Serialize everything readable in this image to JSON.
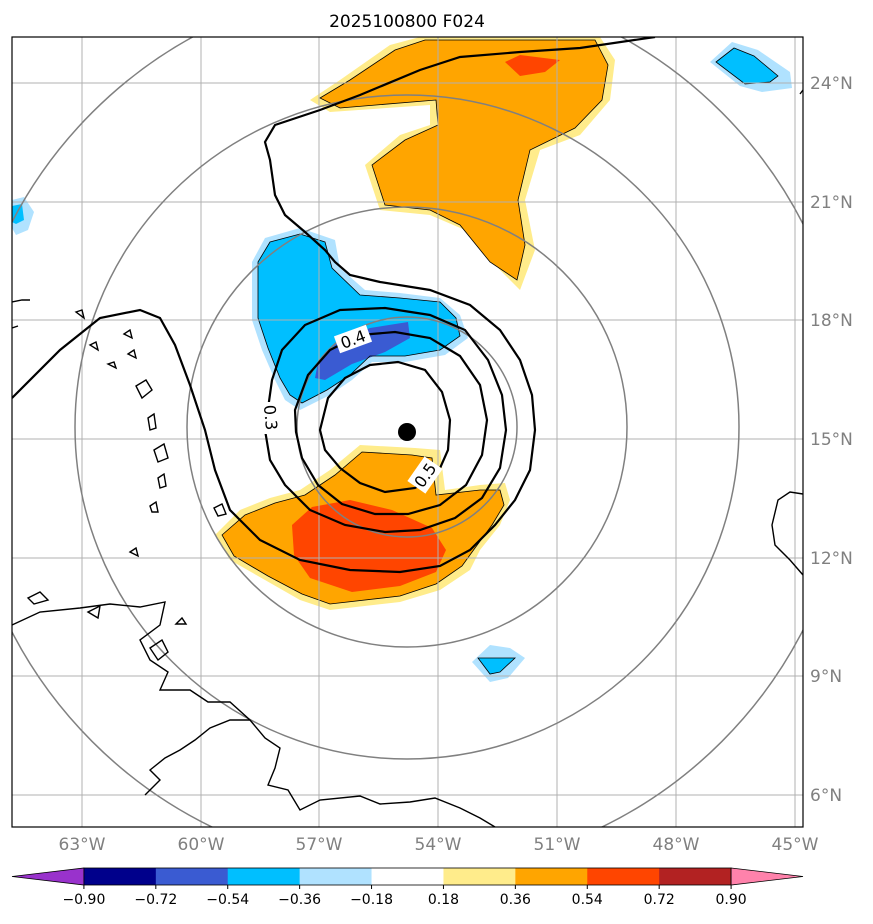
{
  "title": "2025100800 F024",
  "map": {
    "lon_labels": [
      "63°W",
      "60°W",
      "57°W",
      "54°W",
      "51°W",
      "48°W",
      "45°W"
    ],
    "lat_labels": [
      "24°N",
      "21°N",
      "18°N",
      "15°N",
      "12°N",
      "9°N",
      "6°N"
    ],
    "contour_labels": [
      "0.4",
      "0.3",
      "0.5"
    ],
    "storm_center": {
      "lon": -54.0,
      "lat": 15.2
    }
  },
  "colorbar": {
    "ticks": [
      "−0.90",
      "−0.72",
      "−0.54",
      "−0.36",
      "−0.18",
      "0.18",
      "0.36",
      "0.54",
      "0.72",
      "0.90"
    ],
    "colors": [
      "#9932cc",
      "#00008b",
      "#3a5bd2",
      "#00bfff",
      "#b0e2ff",
      "#ffffff",
      "#ffec8b",
      "#ffa500",
      "#ff4500",
      "#b22222",
      "#ff82ab"
    ]
  },
  "colors": {
    "neg_strong": "#3a5bd2",
    "neg_mid": "#00bfff",
    "neg_light": "#b0e2ff",
    "pos_light": "#ffec8b",
    "pos_mid": "#ffa500",
    "pos_strong": "#ff4500"
  }
}
